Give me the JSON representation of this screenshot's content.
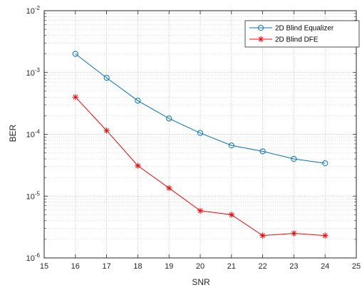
{
  "chart_data": {
    "type": "line",
    "xlabel": "SNR",
    "ylabel": "BER",
    "xlim": [
      15,
      25
    ],
    "ylim": [
      1e-06,
      0.01
    ],
    "yscale": "log",
    "grid": true,
    "legend_position": "top-right",
    "x_ticks": [
      "15",
      "16",
      "17",
      "18",
      "19",
      "20",
      "21",
      "22",
      "23",
      "24",
      "25"
    ],
    "y_ticks": [
      {
        "base": "10",
        "exp": "-6"
      },
      {
        "base": "10",
        "exp": "-5"
      },
      {
        "base": "10",
        "exp": "-4"
      },
      {
        "base": "10",
        "exp": "-3"
      },
      {
        "base": "10",
        "exp": "-2"
      }
    ],
    "x": [
      16,
      17,
      18,
      19,
      20,
      21,
      22,
      23,
      24
    ],
    "series": [
      {
        "name": "2D Blind Equalizer",
        "color": "#0072BD",
        "marker": "circle",
        "values": [
          0.002,
          0.00082,
          0.00035,
          0.00018,
          0.000105,
          6.6e-05,
          5.3e-05,
          4e-05,
          3.4e-05
        ]
      },
      {
        "name": "2D Blind DFE",
        "color": "#FF0000",
        "marker": "asterisk",
        "values": [
          0.0004,
          0.000115,
          3.1e-05,
          1.35e-05,
          5.8e-06,
          5e-06,
          2.3e-06,
          2.5e-06,
          2.3e-06
        ]
      }
    ]
  }
}
